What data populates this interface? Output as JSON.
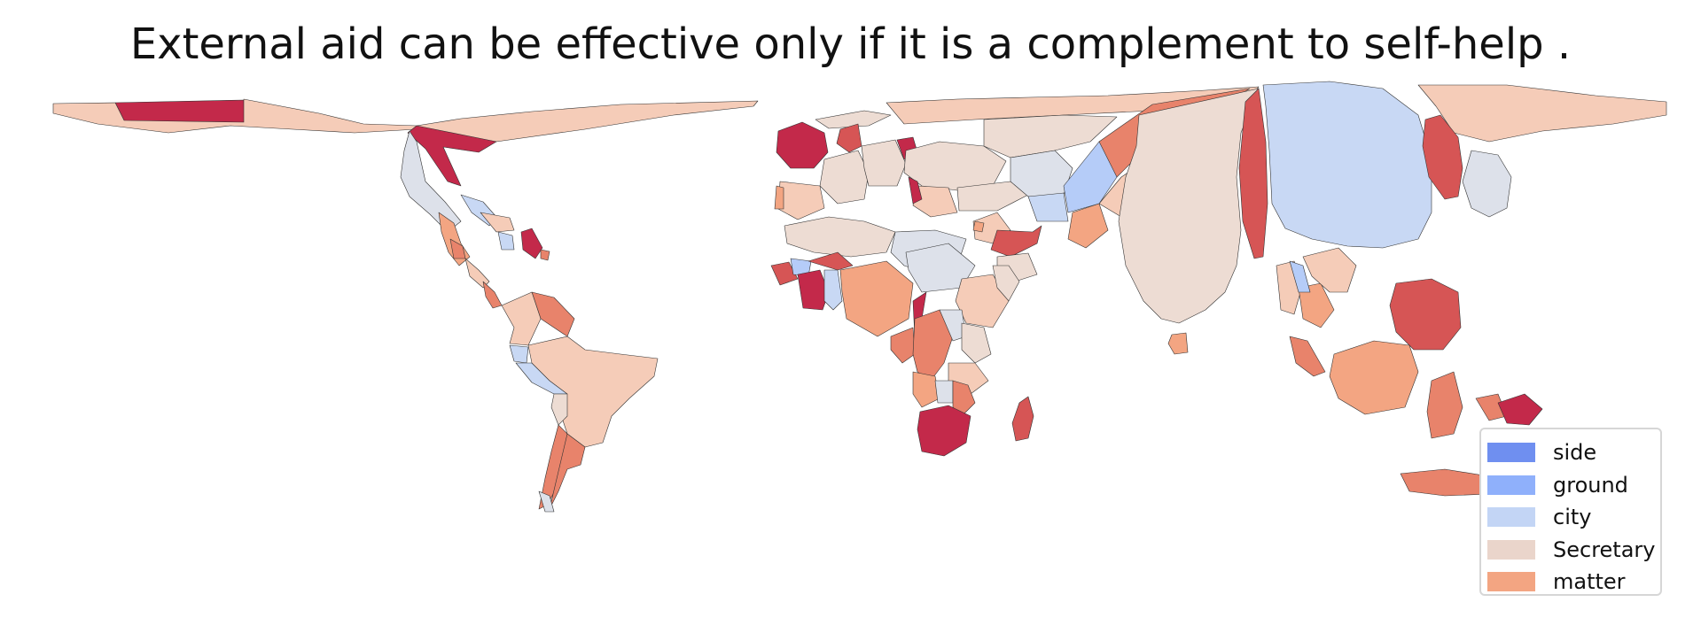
{
  "title": "External aid can be effective only if it is a complement to self-help .",
  "legend": {
    "items": [
      {
        "label": "side",
        "color": "#6f8ff0"
      },
      {
        "label": "ground",
        "color": "#8fb0fb"
      },
      {
        "label": "city",
        "color": "#c3d5f5"
      },
      {
        "label": "Secretary",
        "color": "#ead5cb"
      },
      {
        "label": "matter",
        "color": "#f3a582"
      }
    ]
  },
  "palette": {
    "darkred": "#c3294a",
    "red": "#d65555",
    "salmon": "#e8836b",
    "peach": "#f3a582",
    "lightpeach": "#f5ccb8",
    "tan": "#eddcd3",
    "greyblue": "#dde1ea",
    "lightblue": "#c8d8f4",
    "blue": "#b5ccf8",
    "outline": "#333333"
  }
}
